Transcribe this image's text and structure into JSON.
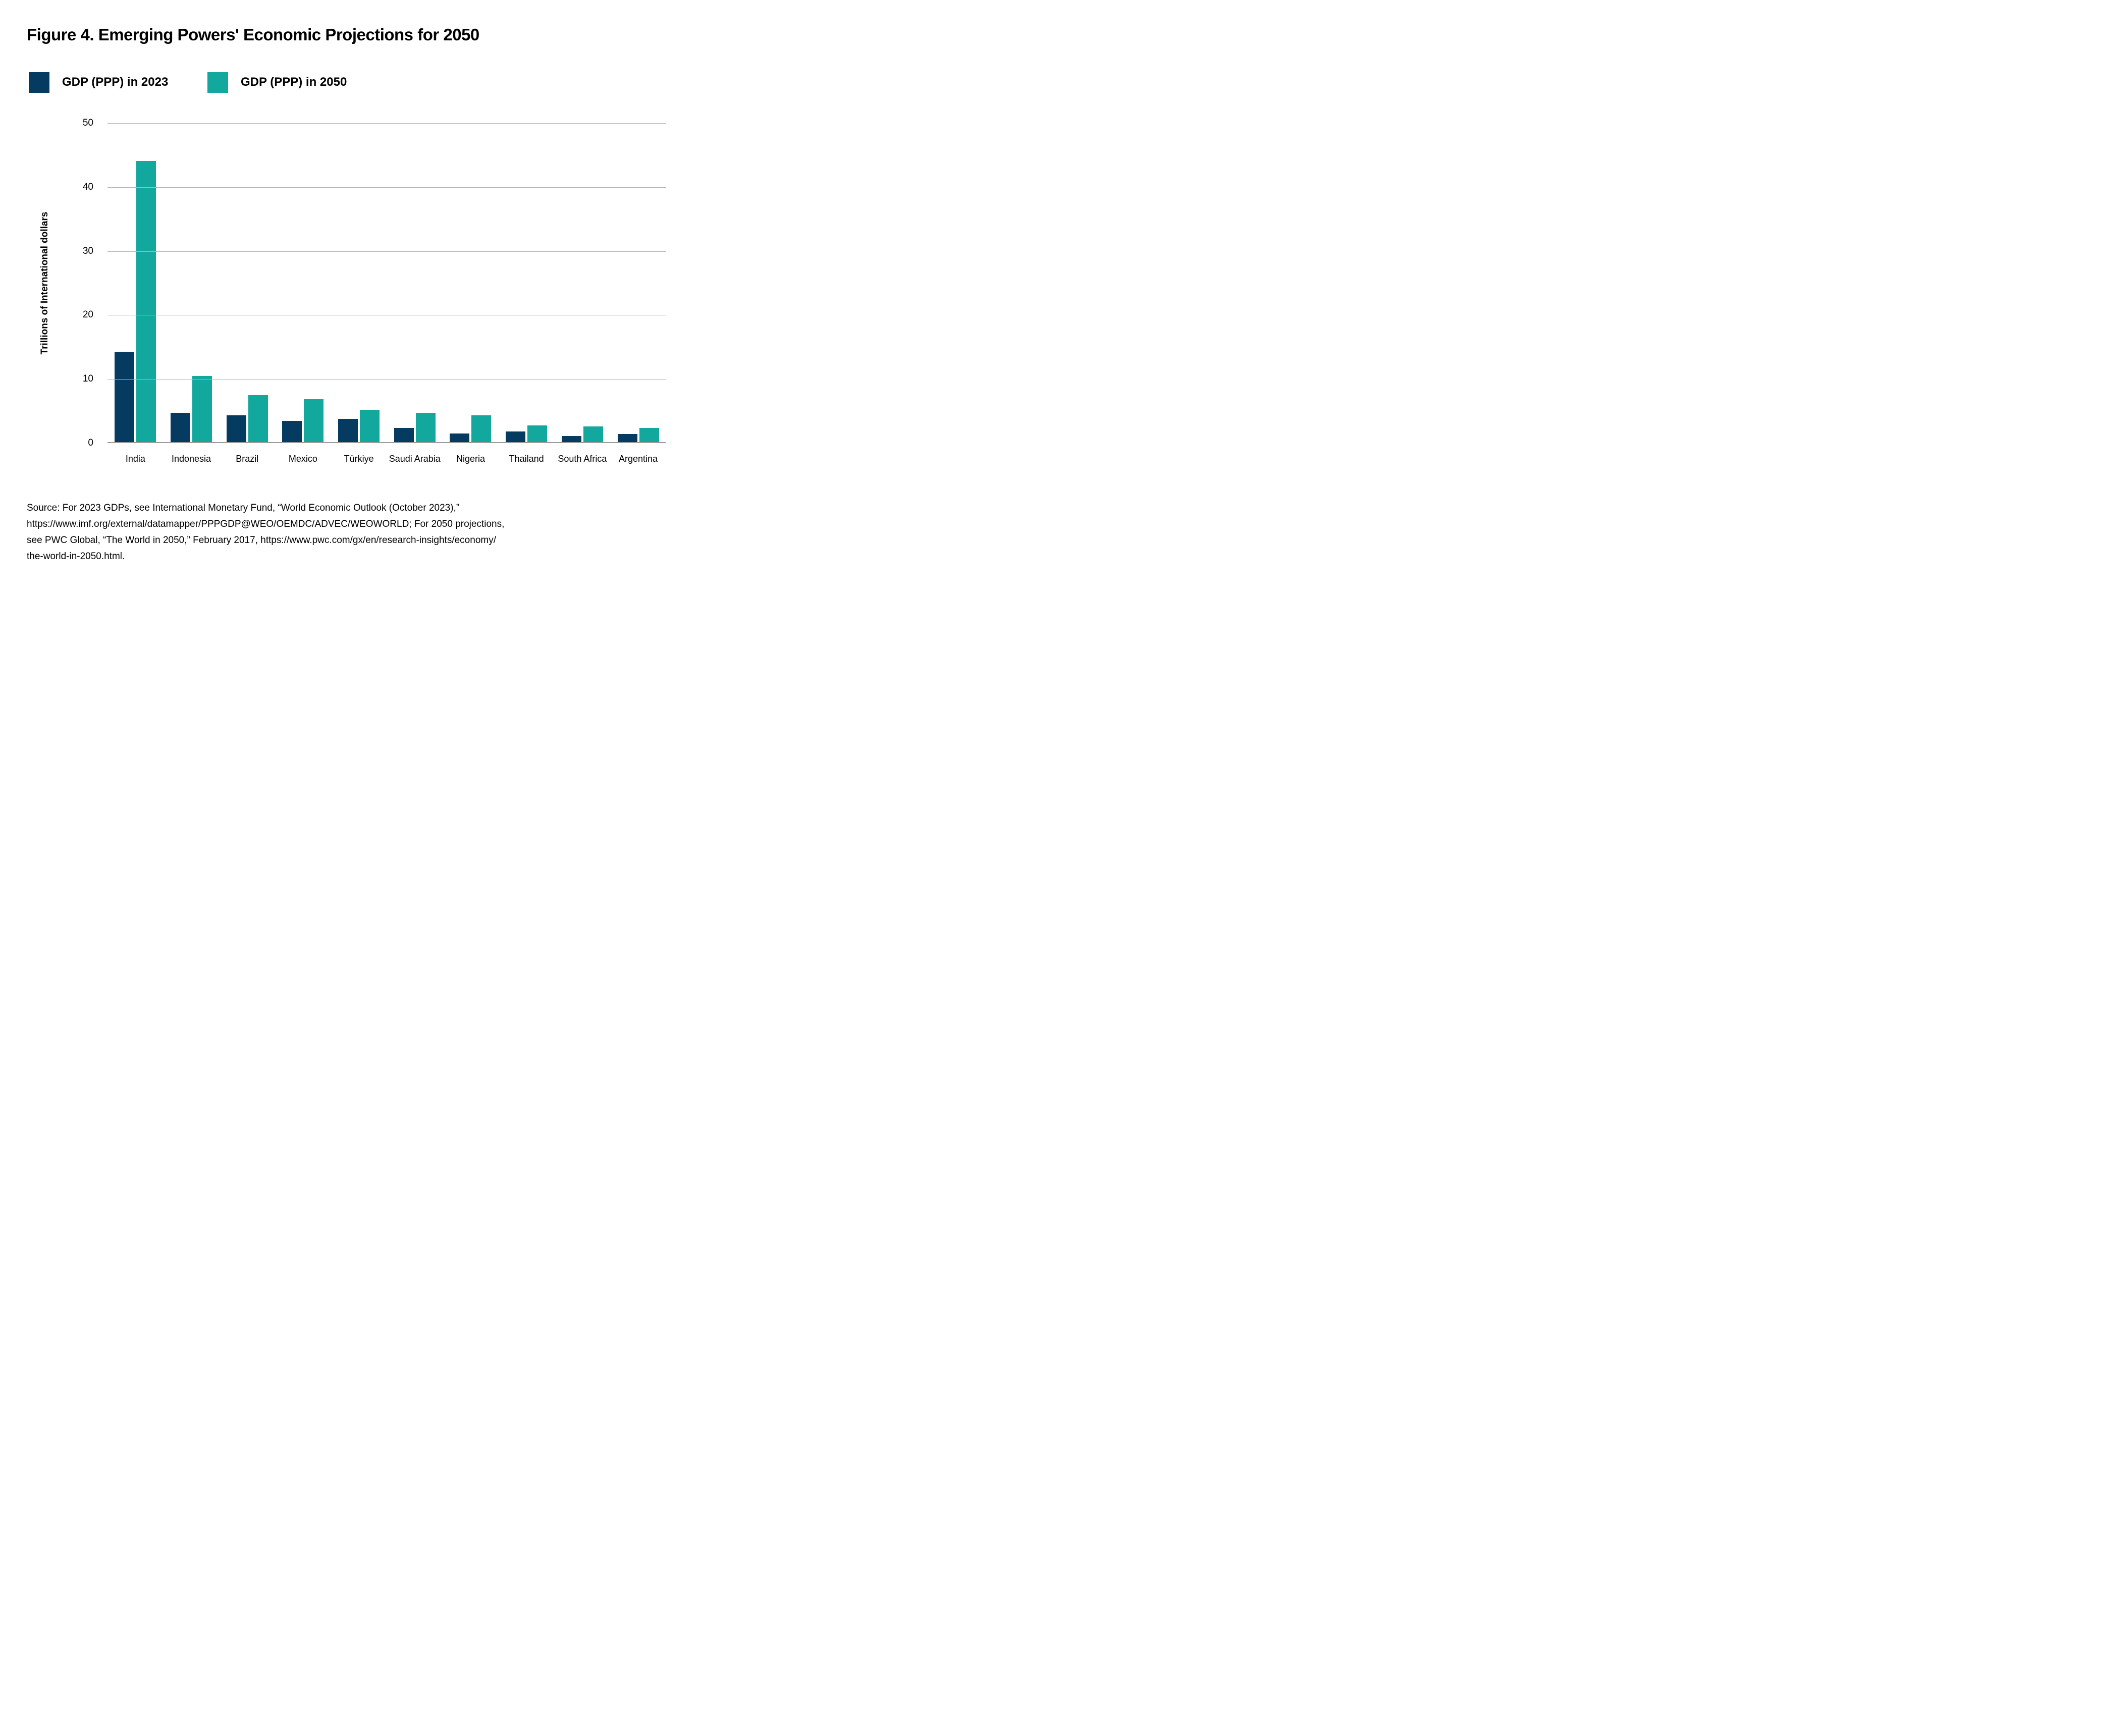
{
  "figure": {
    "title": "Figure 4. Emerging Powers' Economic Projections for 2050"
  },
  "chart_data": {
    "type": "bar",
    "title": "Figure 4. Emerging Powers' Economic Projections for 2050",
    "categories": [
      "India",
      "Indonesia",
      "Brazil",
      "Mexico",
      "Türkiye",
      "Saudi Arabia",
      "Nigeria",
      "Thailand",
      "South Africa",
      "Argentina"
    ],
    "series": [
      {
        "name": "GDP (PPP) in 2023",
        "color": "#053a61",
        "values": [
          14.3,
          4.7,
          4.3,
          3.5,
          3.8,
          2.4,
          1.5,
          1.8,
          1.1,
          1.4
        ]
      },
      {
        "name": "GDP (PPP) in 2050",
        "color": "#12a89e",
        "values": [
          44.1,
          10.5,
          7.5,
          6.9,
          5.2,
          4.7,
          4.3,
          2.8,
          2.6,
          2.4
        ]
      }
    ],
    "xlabel": "",
    "ylabel": "Trillions of International dollars",
    "ylim": [
      0,
      50
    ],
    "yticks": [
      0,
      10,
      20,
      30,
      40,
      50
    ],
    "grid": true,
    "legend_position": "top-left",
    "gridline_color": "#b5b5b5",
    "baseline_color": "#9c9c9c",
    "text_color": "#000000"
  },
  "source": {
    "lines": [
      "Source: For 2023 GDPs, see International Monetary Fund, “World Economic Outlook (October 2023),”",
      "https://www.imf.org/external/datamapper/PPPGDP@WEO/OEMDC/ADVEC/WEOWORLD; For 2050 projections,",
      "see PWC Global, “The World in 2050,” February 2017, https://www.pwc.com/gx/en/research-insights/economy/",
      "the-world-in-2050.html."
    ]
  }
}
